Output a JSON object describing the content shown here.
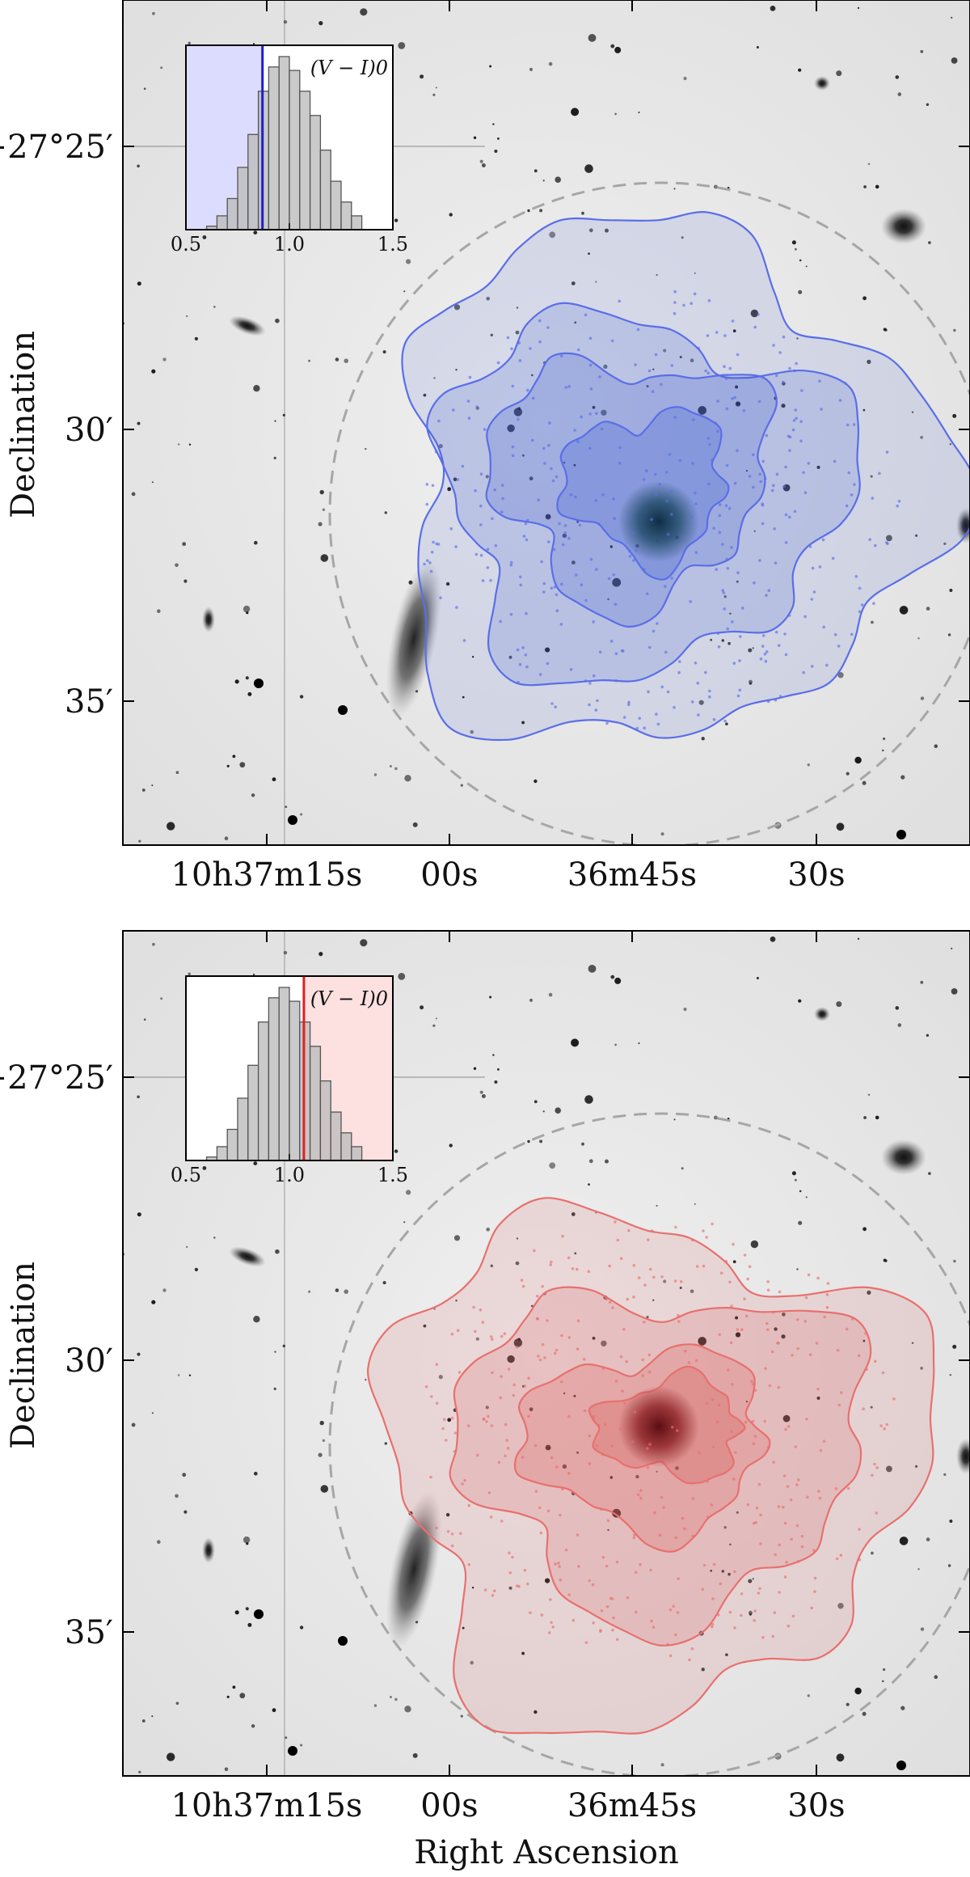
{
  "figure": {
    "x_axis_label": "Right Ascension",
    "y_axis_label": "Declination",
    "x_tick_labels": [
      "10h37m15s",
      "00s",
      "36m45s",
      "30s"
    ],
    "y_tick_labels": [
      "−27°25′",
      "30′",
      "35′"
    ],
    "panels": [
      {
        "name": "blue-panel",
        "contour_color": "#5a6ee8",
        "fill_color": "#3c5ad2",
        "core_color": "#1f4a66",
        "inset": {
          "label": "(V − I)0",
          "tick_labels": [
            "0.5",
            "1.0",
            "1.5"
          ],
          "cut_value": 0.87,
          "shade_side": "below",
          "shade_color": "#dcdcff",
          "line_color": "#1f1fc8"
        }
      },
      {
        "name": "red-panel",
        "contour_color": "#e8706e",
        "fill_color": "#d8504c",
        "core_color": "#8a1f24",
        "inset": {
          "label": "(V − I)0",
          "tick_labels": [
            "0.5",
            "1.0",
            "1.5"
          ],
          "cut_value": 1.07,
          "shade_side": "above",
          "shade_color": "#fde0e0",
          "line_color": "#e01f1f"
        }
      }
    ]
  },
  "chart_data": [
    {
      "type": "bar",
      "categories": [
        "0.60",
        "0.65",
        "0.70",
        "0.75",
        "0.80",
        "0.85",
        "0.90",
        "0.95",
        "1.00",
        "1.05",
        "1.10",
        "1.15",
        "1.20",
        "1.25",
        "1.30"
      ],
      "values": [
        2,
        8,
        18,
        36,
        55,
        80,
        94,
        100,
        92,
        80,
        66,
        46,
        28,
        16,
        8
      ],
      "xlim": [
        0.5,
        1.5
      ],
      "cut": 0.87,
      "label": "(V − I)0"
    },
    {
      "type": "bar",
      "categories": [
        "0.60",
        "0.65",
        "0.70",
        "0.75",
        "0.80",
        "0.85",
        "0.90",
        "0.95",
        "1.00",
        "1.05",
        "1.10",
        "1.15",
        "1.20",
        "1.25",
        "1.30"
      ],
      "values": [
        2,
        8,
        18,
        36,
        55,
        80,
        94,
        100,
        92,
        80,
        66,
        46,
        28,
        16,
        8
      ],
      "xlim": [
        0.5,
        1.5
      ],
      "cut": 1.07,
      "label": "(V − I)0"
    }
  ]
}
